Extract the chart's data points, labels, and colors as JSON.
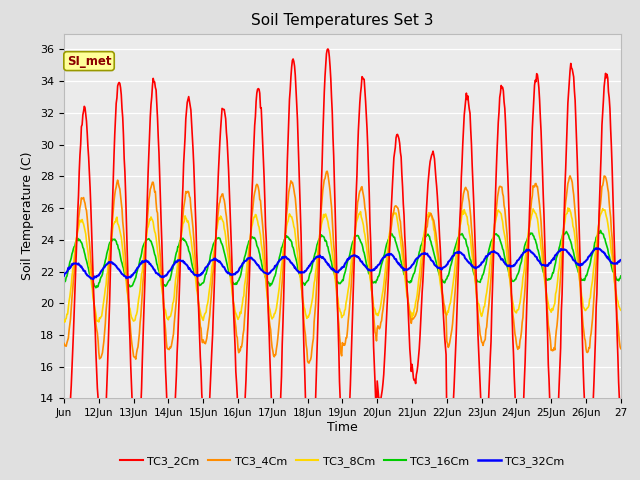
{
  "title": "Soil Temperatures Set 3",
  "xlabel": "Time",
  "ylabel": "Soil Temperature (C)",
  "ylim": [
    14,
    37
  ],
  "yticks": [
    14,
    16,
    18,
    20,
    22,
    24,
    26,
    28,
    30,
    32,
    34,
    36
  ],
  "xlim": [
    11.0,
    27.0
  ],
  "x_tick_positions": [
    11,
    12,
    13,
    14,
    15,
    16,
    17,
    18,
    19,
    20,
    21,
    22,
    23,
    24,
    25,
    26,
    27
  ],
  "x_tick_labels": [
    "Jun",
    "12Jun",
    "13Jun",
    "14Jun",
    "15Jun",
    "16Jun",
    "17Jun",
    "18Jun",
    "19Jun",
    "20Jun",
    "21Jun",
    "22Jun",
    "23Jun",
    "24Jun",
    "25Jun",
    "26Jun",
    "27"
  ],
  "series": {
    "TC3_2Cm": {
      "color": "#FF0000",
      "lw": 1.2
    },
    "TC3_4Cm": {
      "color": "#FF8C00",
      "lw": 1.2
    },
    "TC3_8Cm": {
      "color": "#FFD700",
      "lw": 1.2
    },
    "TC3_16Cm": {
      "color": "#00CC00",
      "lw": 1.2
    },
    "TC3_32Cm": {
      "color": "#0000FF",
      "lw": 1.5
    }
  },
  "annotation_text": "SI_met",
  "bg_color": "#E0E0E0",
  "plot_bg_color": "#EBEBEB",
  "grid_color": "#FFFFFF",
  "legend_colors": [
    "#FF0000",
    "#FF8C00",
    "#FFD700",
    "#00CC00",
    "#0000FF"
  ],
  "legend_labels": [
    "TC3_2Cm",
    "TC3_4Cm",
    "TC3_8Cm",
    "TC3_16Cm",
    "TC3_32Cm"
  ],
  "figsize": [
    6.4,
    4.8
  ],
  "dpi": 100
}
